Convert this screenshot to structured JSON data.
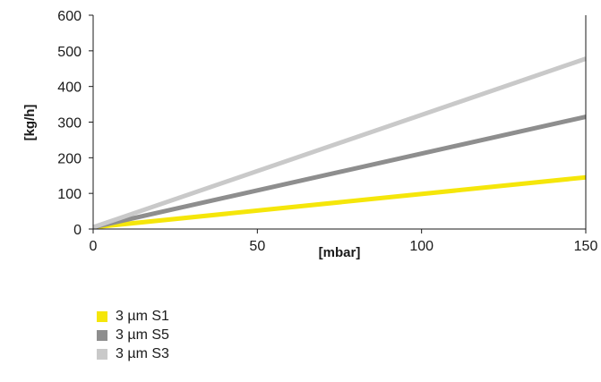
{
  "chart_data": {
    "type": "line",
    "xlabel": "[mbar]",
    "ylabel": "[kg/h]",
    "xlim": [
      0,
      150
    ],
    "ylim": [
      0,
      600
    ],
    "xticks": [
      "0",
      "50",
      "100",
      "150"
    ],
    "yticks": [
      "0",
      "100",
      "200",
      "300",
      "400",
      "500",
      "600"
    ],
    "grid": false,
    "legend_position": "bottom-left",
    "series": [
      {
        "name": "3 µm S1",
        "color": "#f5e60a",
        "x": [
          0,
          150
        ],
        "y": [
          5,
          145
        ]
      },
      {
        "name": "3 µm S5",
        "color": "#8e8e8e",
        "x": [
          0,
          150
        ],
        "y": [
          5,
          315
        ]
      },
      {
        "name": "3 µm S3",
        "color": "#c9c9c9",
        "x": [
          0,
          150
        ],
        "y": [
          5,
          478
        ]
      }
    ]
  }
}
